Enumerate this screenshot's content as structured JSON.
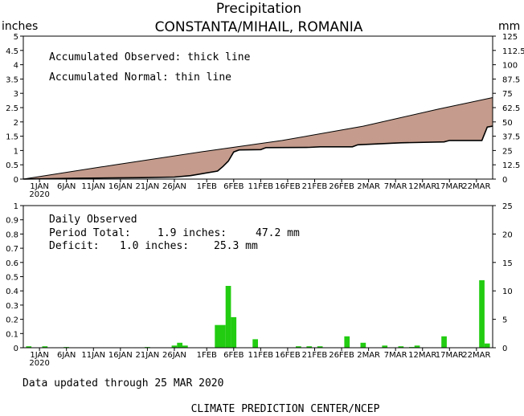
{
  "chart_data": {
    "title": "Precipitation",
    "subtitle": "CONSTANTA/MIHAIL, ROMANIA",
    "left_unit": "inches",
    "right_unit": "mm",
    "footer_updated": "Data updated through 25 MAR 2020",
    "footer_source": "CLIMATE PREDICTION CENTER/NCEP",
    "x_ticks": [
      "1JAN",
      "6JAN",
      "11JAN",
      "16JAN",
      "21JAN",
      "26JAN",
      "1FEB",
      "6FEB",
      "11FEB",
      "16FEB",
      "21FEB",
      "26FEB",
      "2MAR",
      "7MAR",
      "12MAR",
      "17MAR",
      "22MAR"
    ],
    "x_year": "2020",
    "start_date": "2019-12-29",
    "end_date": "2020-03-25",
    "top": {
      "type": "area",
      "annotations": [
        "Accumulated Observed: thick line",
        "Accumulated Normal: thin line"
      ],
      "ylim": [
        0,
        5
      ],
      "y_ticks": [
        "0",
        "0.5",
        "1",
        "1.5",
        "2",
        "2.5",
        "3",
        "3.5",
        "4",
        "4.5",
        "5"
      ],
      "y2_ticks": [
        "0",
        "12.5",
        "25",
        "37.5",
        "50",
        "62.5",
        "75",
        "87.5",
        "100",
        "112.5",
        "125"
      ],
      "normal": {
        "x": [
          "2019-12-29",
          "2020-01-15",
          "2020-02-01",
          "2020-02-15",
          "2020-03-01",
          "2020-03-15",
          "2020-03-25"
        ],
        "y": [
          0.0,
          0.5,
          0.98,
          1.35,
          1.85,
          2.45,
          2.85
        ]
      },
      "observed": {
        "x": [
          "2019-12-29",
          "2020-01-08",
          "2020-01-20",
          "2020-01-26",
          "2020-01-29",
          "2020-02-03",
          "2020-02-04",
          "2020-02-05",
          "2020-02-06",
          "2020-02-07",
          "2020-02-11",
          "2020-02-12",
          "2020-02-20",
          "2020-02-22",
          "2020-02-28",
          "2020-02-29",
          "2020-03-08",
          "2020-03-16",
          "2020-03-17",
          "2020-03-23",
          "2020-03-24",
          "2020-03-25"
        ],
        "y": [
          0.0,
          0.03,
          0.05,
          0.07,
          0.12,
          0.28,
          0.44,
          0.63,
          0.95,
          1.02,
          1.03,
          1.1,
          1.11,
          1.13,
          1.13,
          1.2,
          1.27,
          1.3,
          1.35,
          1.35,
          1.82,
          1.85
        ]
      }
    },
    "bottom": {
      "type": "bar",
      "label": "Daily Observed",
      "total_label": "Period Total:",
      "total_in": "1.9 inches:",
      "total_mm": "47.2 mm",
      "deficit_label": "Deficit:",
      "deficit_in": "1.0 inches:",
      "deficit_mm": "25.3 mm",
      "ylim": [
        0,
        1
      ],
      "y_ticks": [
        "0",
        "0.1",
        "0.2",
        "0.3",
        "0.4",
        "0.5",
        "0.6",
        "0.7",
        "0.8",
        "0.9",
        "1"
      ],
      "y2_ticks": [
        "0",
        "5",
        "10",
        "15",
        "20",
        "25"
      ],
      "bar_color": "#22cc11",
      "x": [
        "2019-12-30",
        "2020-01-02",
        "2020-01-06",
        "2020-01-21",
        "2020-01-26",
        "2020-01-27",
        "2020-01-28",
        "2020-02-03",
        "2020-02-04",
        "2020-02-05",
        "2020-02-06",
        "2020-02-10",
        "2020-02-18",
        "2020-02-20",
        "2020-02-22",
        "2020-02-27",
        "2020-03-01",
        "2020-03-05",
        "2020-03-08",
        "2020-03-10",
        "2020-03-11",
        "2020-03-16",
        "2020-03-23",
        "2020-03-24"
      ],
      "values": [
        0.01,
        0.01,
        0.005,
        0.005,
        0.015,
        0.035,
        0.015,
        0.16,
        0.16,
        0.435,
        0.215,
        0.06,
        0.01,
        0.01,
        0.01,
        0.08,
        0.035,
        0.015,
        0.01,
        0.005,
        0.015,
        0.08,
        0.475,
        0.03
      ]
    }
  }
}
